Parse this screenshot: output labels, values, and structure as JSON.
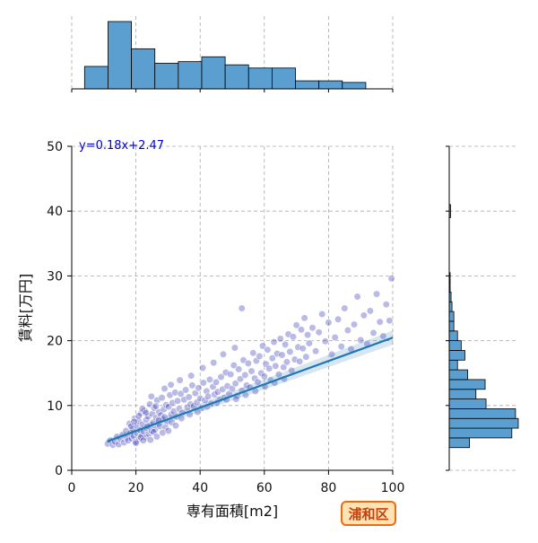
{
  "chart_data": {
    "type": "scatter",
    "title": "",
    "xlabel": "専有面積[m2]",
    "ylabel": "賃料[万円]",
    "xlim": [
      0,
      100
    ],
    "ylim": [
      0,
      50
    ],
    "xticks": [
      0,
      20,
      40,
      60,
      80,
      100
    ],
    "yticks": [
      0,
      10,
      20,
      30,
      40,
      50
    ],
    "grid": true,
    "regression": {
      "equation": "y=0.18x+2.47",
      "slope": 0.18,
      "intercept": 2.47,
      "x_range": [
        11,
        100
      ],
      "color": "#1f77b4"
    },
    "point_color": "#3a3ab8",
    "bar_color": "#5a9fcf",
    "x_histogram": {
      "bin_edges": [
        4,
        11.3,
        18.6,
        25.9,
        33.2,
        40.5,
        47.8,
        55.1,
        62.4,
        69.7,
        77,
        84.3,
        91.6
      ],
      "counts": [
        28,
        84,
        50,
        32,
        34,
        40,
        30,
        26,
        26,
        10,
        10,
        8
      ]
    },
    "y_histogram": {
      "bin_edges": [
        3.5,
        5,
        6.5,
        8,
        9.5,
        11,
        12.5,
        14,
        15.5,
        17,
        18.5,
        20,
        21.5,
        23,
        24.5,
        26,
        27.5,
        29,
        30.5
      ],
      "counts": [
        22,
        68,
        75,
        72,
        40,
        29,
        39,
        20,
        9,
        17,
        13,
        9,
        5,
        5,
        3,
        2,
        1,
        1
      ],
      "extra_bins": [
        {
          "y": [
            39,
            41
          ],
          "count": 1
        }
      ]
    },
    "badge": "浦和区",
    "scatter_points": [
      [
        11.2,
        4.1
      ],
      [
        12.0,
        4.6
      ],
      [
        12.8,
        3.9
      ],
      [
        13.5,
        4.4
      ],
      [
        14.1,
        5.2
      ],
      [
        14.6,
        4.0
      ],
      [
        15.2,
        4.8
      ],
      [
        15.8,
        5.5
      ],
      [
        16.3,
        4.3
      ],
      [
        16.9,
        6.1
      ],
      [
        17.2,
        5.0
      ],
      [
        17.6,
        4.6
      ],
      [
        18.0,
        7.2
      ],
      [
        18.3,
        5.8
      ],
      [
        18.7,
        4.9
      ],
      [
        19.0,
        6.4
      ],
      [
        19.3,
        5.3
      ],
      [
        19.6,
        8.0
      ],
      [
        19.9,
        4.4
      ],
      [
        20.2,
        6.9
      ],
      [
        20.5,
        5.7
      ],
      [
        20.8,
        7.6
      ],
      [
        21.0,
        4.8
      ],
      [
        21.3,
        6.2
      ],
      [
        21.6,
        8.8
      ],
      [
        21.9,
        5.4
      ],
      [
        22.1,
        7.1
      ],
      [
        22.4,
        6.0
      ],
      [
        22.7,
        9.2
      ],
      [
        23.0,
        5.1
      ],
      [
        23.2,
        7.8
      ],
      [
        23.5,
        6.5
      ],
      [
        23.8,
        8.3
      ],
      [
        24.0,
        5.6
      ],
      [
        24.3,
        10.2
      ],
      [
        24.6,
        7.0
      ],
      [
        24.9,
        6.1
      ],
      [
        25.1,
        8.7
      ],
      [
        25.4,
        7.4
      ],
      [
        25.7,
        9.6
      ],
      [
        26.0,
        6.3
      ],
      [
        26.3,
        8.1
      ],
      [
        26.6,
        10.8
      ],
      [
        26.9,
        7.2
      ],
      [
        27.2,
        9.0
      ],
      [
        27.5,
        6.8
      ],
      [
        27.8,
        8.5
      ],
      [
        28.1,
        11.2
      ],
      [
        28.4,
        7.9
      ],
      [
        28.7,
        9.4
      ],
      [
        29.0,
        8.2
      ],
      [
        29.4,
        10.1
      ],
      [
        29.8,
        7.5
      ],
      [
        30.2,
        9.8
      ],
      [
        30.6,
        11.6
      ],
      [
        31.0,
        8.6
      ],
      [
        31.4,
        10.4
      ],
      [
        31.8,
        9.1
      ],
      [
        32.2,
        12.0
      ],
      [
        32.6,
        8.3
      ],
      [
        33.0,
        10.7
      ],
      [
        33.5,
        9.5
      ],
      [
        34.0,
        11.8
      ],
      [
        34.5,
        8.9
      ],
      [
        35.0,
        10.9
      ],
      [
        35.5,
        12.4
      ],
      [
        36.0,
        9.7
      ],
      [
        36.5,
        11.3
      ],
      [
        37.0,
        10.2
      ],
      [
        37.5,
        13.1
      ],
      [
        38.0,
        9.9
      ],
      [
        38.5,
        11.9
      ],
      [
        39.0,
        10.5
      ],
      [
        39.5,
        12.7
      ],
      [
        40.0,
        11.1
      ],
      [
        40.5,
        9.6
      ],
      [
        41.0,
        13.5
      ],
      [
        41.5,
        10.8
      ],
      [
        42.0,
        12.2
      ],
      [
        42.5,
        11.4
      ],
      [
        43.0,
        14.0
      ],
      [
        43.5,
        10.3
      ],
      [
        44.0,
        12.9
      ],
      [
        44.5,
        11.7
      ],
      [
        45.0,
        13.6
      ],
      [
        45.5,
        12.1
      ],
      [
        46.0,
        10.9
      ],
      [
        46.5,
        14.4
      ],
      [
        47.0,
        12.5
      ],
      [
        47.5,
        11.2
      ],
      [
        48.0,
        15.1
      ],
      [
        48.5,
        13.0
      ],
      [
        49.0,
        11.8
      ],
      [
        49.5,
        14.8
      ],
      [
        50.0,
        12.6
      ],
      [
        50.5,
        16.2
      ],
      [
        51.0,
        13.4
      ],
      [
        51.5,
        11.5
      ],
      [
        52.0,
        15.6
      ],
      [
        52.5,
        14.1
      ],
      [
        53.0,
        12.3
      ],
      [
        53.5,
        17.0
      ],
      [
        54.0,
        14.7
      ],
      [
        54.5,
        13.1
      ],
      [
        55.0,
        16.5
      ],
      [
        55.5,
        12.8
      ],
      [
        56.0,
        15.3
      ],
      [
        56.5,
        18.1
      ],
      [
        57.0,
        14.2
      ],
      [
        57.5,
        16.9
      ],
      [
        58.0,
        13.6
      ],
      [
        58.5,
        17.6
      ],
      [
        59.0,
        15.0
      ],
      [
        59.5,
        19.2
      ],
      [
        60.0,
        14.5
      ],
      [
        60.5,
        16.4
      ],
      [
        61.0,
        18.6
      ],
      [
        61.5,
        15.7
      ],
      [
        62.0,
        13.9
      ],
      [
        62.5,
        17.3
      ],
      [
        63.0,
        19.8
      ],
      [
        63.5,
        16.1
      ],
      [
        64.0,
        18.0
      ],
      [
        64.5,
        14.8
      ],
      [
        65.0,
        20.3
      ],
      [
        65.5,
        17.8
      ],
      [
        66.0,
        15.9
      ],
      [
        66.5,
        19.4
      ],
      [
        67.0,
        16.7
      ],
      [
        67.5,
        21.0
      ],
      [
        68.0,
        18.3
      ],
      [
        68.5,
        15.4
      ],
      [
        69.0,
        20.6
      ],
      [
        69.5,
        17.1
      ],
      [
        70.0,
        22.4
      ],
      [
        70.5,
        19.0
      ],
      [
        71.0,
        16.8
      ],
      [
        71.5,
        21.7
      ],
      [
        72.0,
        18.8
      ],
      [
        72.5,
        23.5
      ],
      [
        73.0,
        17.5
      ],
      [
        73.5,
        20.9
      ],
      [
        74.0,
        19.6
      ],
      [
        75.0,
        22.0
      ],
      [
        76.0,
        18.4
      ],
      [
        77.0,
        21.3
      ],
      [
        78.0,
        24.1
      ],
      [
        79.0,
        19.9
      ],
      [
        80.0,
        22.8
      ],
      [
        81.0,
        17.9
      ],
      [
        82.0,
        20.5
      ],
      [
        83.0,
        23.3
      ],
      [
        84.0,
        19.1
      ],
      [
        85.0,
        25.0
      ],
      [
        86.0,
        21.6
      ],
      [
        87.0,
        18.7
      ],
      [
        88.0,
        22.5
      ],
      [
        89.0,
        26.8
      ],
      [
        90.0,
        20.1
      ],
      [
        91.0,
        23.9
      ],
      [
        92.0,
        19.5
      ],
      [
        93.0,
        24.6
      ],
      [
        94.0,
        21.2
      ],
      [
        95.0,
        27.2
      ],
      [
        96.0,
        22.9
      ],
      [
        97.0,
        20.7
      ],
      [
        98.0,
        25.6
      ],
      [
        99.0,
        23.1
      ],
      [
        99.6,
        29.6
      ],
      [
        53.0,
        25.0
      ],
      [
        22.0,
        9.5
      ],
      [
        20.0,
        4.2
      ],
      [
        21.5,
        5.1
      ],
      [
        23.6,
        6.8
      ],
      [
        25.5,
        5.9
      ],
      [
        27.1,
        7.7
      ],
      [
        29.2,
        6.6
      ],
      [
        31.2,
        7.4
      ],
      [
        34.2,
        8.0
      ],
      [
        36.8,
        8.6
      ],
      [
        39.2,
        9.0
      ],
      [
        42.2,
        9.8
      ],
      [
        45.2,
        10.4
      ],
      [
        48.2,
        10.9
      ],
      [
        51.2,
        11.0
      ],
      [
        54.2,
        11.6
      ],
      [
        57.2,
        12.2
      ],
      [
        60.2,
        12.9
      ],
      [
        63.2,
        13.5
      ],
      [
        66.2,
        14.1
      ],
      [
        24.8,
        11.4
      ],
      [
        26.2,
        9.9
      ],
      [
        28.9,
        12.6
      ],
      [
        30.9,
        13.2
      ],
      [
        33.7,
        13.9
      ],
      [
        37.2,
        14.6
      ],
      [
        40.8,
        15.8
      ],
      [
        44.2,
        16.6
      ],
      [
        47.2,
        17.9
      ],
      [
        50.8,
        18.9
      ],
      [
        18.5,
        6.8
      ],
      [
        19.4,
        7.5
      ],
      [
        20.9,
        8.4
      ],
      [
        22.3,
        4.6
      ],
      [
        23.1,
        8.9
      ],
      [
        24.5,
        4.7
      ],
      [
        26.5,
        5.2
      ],
      [
        28.3,
        5.8
      ],
      [
        30.1,
        6.1
      ],
      [
        32.4,
        6.9
      ]
    ]
  }
}
